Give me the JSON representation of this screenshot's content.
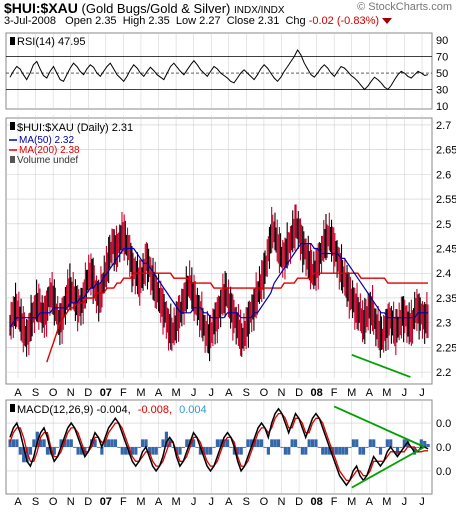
{
  "header": {
    "symbol": "$HUI:$XAU",
    "description": "(Gold Bugs/Gold & Silver)",
    "exchange": "INDX/INDX",
    "watermark": "© StockCharts.com",
    "date": "3-Jul-2008",
    "open_label": "Open",
    "open": "2.35",
    "high_label": "High",
    "high": "2.35",
    "low_label": "Low",
    "low": "2.27",
    "close_label": "Close",
    "close": "2.31",
    "chg_label": "Chg",
    "chg": "-0.02 (-0.83%)"
  },
  "colors": {
    "price_up": "#000000",
    "price_down": "#c8002a",
    "ma50": "#0000aa",
    "ma200": "#dd0000",
    "macd_line": "#000000",
    "signal_line": "#dd0000",
    "histogram": "#3366aa",
    "trendline": "#00a000",
    "grid": "#cccccc"
  },
  "chart_data": [
    {
      "type": "line",
      "panel": "RSI",
      "legend": "RSI(14) 47.95",
      "y_ticks": [
        10,
        30,
        50,
        70,
        90
      ],
      "ylim": [
        10,
        95
      ],
      "reference_lines": [
        30,
        70
      ],
      "series": [
        {
          "name": "RSI(14)",
          "values": [
            45,
            52,
            58,
            55,
            48,
            42,
            50,
            60,
            64,
            55,
            47,
            44,
            52,
            58,
            50,
            42,
            40,
            48,
            56,
            62,
            58,
            52,
            48,
            55,
            60,
            57,
            50,
            46,
            52,
            58,
            62,
            55,
            48,
            44,
            40,
            46,
            54,
            60,
            56,
            50,
            46,
            52,
            57,
            53,
            48,
            45,
            42,
            50,
            58,
            62,
            57,
            52,
            48,
            54,
            60,
            65,
            60,
            54,
            50,
            46,
            52,
            58,
            55,
            50,
            47,
            44,
            40,
            38,
            44,
            50,
            54,
            50,
            46,
            42,
            48,
            55,
            60,
            56,
            50,
            44,
            40,
            45,
            52,
            58,
            64,
            70,
            78,
            72,
            62,
            55,
            48,
            45,
            50,
            56,
            60,
            56,
            50,
            46,
            52,
            58,
            56,
            52,
            47,
            44,
            40,
            35,
            30,
            34,
            40,
            45,
            42,
            38,
            33,
            30,
            35,
            42,
            48,
            52,
            50,
            46,
            44,
            48,
            52,
            50,
            47,
            48
          ]
        }
      ]
    },
    {
      "type": "line",
      "panel": "Price",
      "title": "$HUI:$XAU (Daily) 2.31",
      "legend": [
        "$HUI:$XAU (Daily) 2.31",
        "MA(50) 2.32",
        "MA(200) 2.38",
        "Volume undef"
      ],
      "y_ticks": [
        2.2,
        2.25,
        2.3,
        2.35,
        2.4,
        2.45,
        2.5,
        2.55,
        2.6,
        2.65,
        2.7
      ],
      "ylim": [
        2.18,
        2.71
      ],
      "x_ticks": [
        "A",
        "S",
        "O",
        "N",
        "D",
        "07",
        "F",
        "M",
        "A",
        "M",
        "J",
        "J",
        "A",
        "S",
        "O",
        "N",
        "D",
        "08",
        "F",
        "M",
        "A",
        "M",
        "J",
        "J"
      ],
      "series": [
        {
          "name": "$HUI:$XAU",
          "values": [
            2.3,
            2.32,
            2.33,
            2.31,
            2.29,
            2.27,
            2.29,
            2.32,
            2.34,
            2.33,
            2.31,
            2.33,
            2.36,
            2.35,
            2.32,
            2.3,
            2.32,
            2.35,
            2.37,
            2.36,
            2.34,
            2.33,
            2.35,
            2.38,
            2.4,
            2.39,
            2.36,
            2.35,
            2.38,
            2.41,
            2.44,
            2.46,
            2.44,
            2.47,
            2.48,
            2.46,
            2.44,
            2.41,
            2.4,
            2.38,
            2.4,
            2.43,
            2.41,
            2.38,
            2.37,
            2.35,
            2.33,
            2.31,
            2.29,
            2.28,
            2.3,
            2.32,
            2.34,
            2.36,
            2.38,
            2.36,
            2.34,
            2.32,
            2.3,
            2.28,
            2.27,
            2.29,
            2.31,
            2.33,
            2.35,
            2.36,
            2.34,
            2.32,
            2.3,
            2.28,
            2.27,
            2.29,
            2.31,
            2.33,
            2.35,
            2.37,
            2.39,
            2.42,
            2.46,
            2.49,
            2.47,
            2.45,
            2.43,
            2.44,
            2.46,
            2.48,
            2.5,
            2.48,
            2.46,
            2.44,
            2.42,
            2.4,
            2.41,
            2.43,
            2.45,
            2.47,
            2.48,
            2.46,
            2.44,
            2.42,
            2.4,
            2.38,
            2.36,
            2.35,
            2.33,
            2.32,
            2.3,
            2.31,
            2.33,
            2.32,
            2.3,
            2.28,
            2.27,
            2.29,
            2.31,
            2.3,
            2.28,
            2.3,
            2.32,
            2.31,
            2.29,
            2.3,
            2.33,
            2.32,
            2.31,
            2.31
          ]
        },
        {
          "name": "MA(50)",
          "values": [
            2.29,
            2.3,
            2.31,
            2.31,
            2.31,
            2.31,
            2.31,
            2.31,
            2.31,
            2.32,
            2.32,
            2.32,
            2.32,
            2.33,
            2.33,
            2.33,
            2.33,
            2.33,
            2.34,
            2.34,
            2.34,
            2.35,
            2.35,
            2.36,
            2.37,
            2.37,
            2.38,
            2.38,
            2.39,
            2.4,
            2.41,
            2.42,
            2.43,
            2.44,
            2.45,
            2.45,
            2.45,
            2.45,
            2.44,
            2.43,
            2.42,
            2.42,
            2.41,
            2.4,
            2.39,
            2.38,
            2.37,
            2.36,
            2.35,
            2.34,
            2.33,
            2.32,
            2.32,
            2.32,
            2.32,
            2.33,
            2.33,
            2.33,
            2.32,
            2.32,
            2.31,
            2.31,
            2.31,
            2.31,
            2.31,
            2.32,
            2.32,
            2.32,
            2.32,
            2.31,
            2.31,
            2.31,
            2.31,
            2.32,
            2.32,
            2.33,
            2.34,
            2.35,
            2.36,
            2.38,
            2.39,
            2.4,
            2.41,
            2.42,
            2.43,
            2.44,
            2.45,
            2.46,
            2.46,
            2.46,
            2.46,
            2.45,
            2.45,
            2.44,
            2.44,
            2.44,
            2.44,
            2.44,
            2.44,
            2.43,
            2.43,
            2.42,
            2.41,
            2.4,
            2.39,
            2.38,
            2.37,
            2.36,
            2.35,
            2.34,
            2.33,
            2.32,
            2.32,
            2.31,
            2.31,
            2.31,
            2.31,
            2.31,
            2.31,
            2.31,
            2.31,
            2.31,
            2.32,
            2.32,
            2.32,
            2.32
          ]
        },
        {
          "name": "MA(200)",
          "values": [
            null,
            null,
            null,
            null,
            null,
            null,
            null,
            null,
            null,
            null,
            null,
            2.22,
            2.24,
            2.26,
            2.28,
            2.3,
            2.31,
            2.32,
            2.33,
            2.33,
            2.34,
            2.34,
            2.34,
            2.35,
            2.35,
            2.35,
            2.36,
            2.36,
            2.36,
            2.37,
            2.37,
            2.37,
            2.38,
            2.38,
            2.39,
            2.39,
            2.39,
            2.4,
            2.4,
            2.4,
            2.4,
            2.4,
            2.4,
            2.4,
            2.4,
            2.4,
            2.4,
            2.4,
            2.4,
            2.39,
            2.39,
            2.39,
            2.39,
            2.39,
            2.38,
            2.38,
            2.38,
            2.38,
            2.38,
            2.38,
            2.38,
            2.37,
            2.37,
            2.37,
            2.37,
            2.37,
            2.37,
            2.37,
            2.37,
            2.37,
            2.37,
            2.37,
            2.37,
            2.37,
            2.37,
            2.37,
            2.37,
            2.37,
            2.37,
            2.37,
            2.37,
            2.37,
            2.38,
            2.38,
            2.38,
            2.38,
            2.39,
            2.39,
            2.39,
            2.39,
            2.39,
            2.4,
            2.4,
            2.4,
            2.4,
            2.4,
            2.4,
            2.4,
            2.4,
            2.4,
            2.4,
            2.4,
            2.4,
            2.4,
            2.4,
            2.39,
            2.39,
            2.39,
            2.39,
            2.39,
            2.39,
            2.39,
            2.39,
            2.38,
            2.38,
            2.38,
            2.38,
            2.38,
            2.38,
            2.38,
            2.38,
            2.38,
            2.38,
            2.38,
            2.38,
            2.38
          ]
        }
      ],
      "trendline": {
        "from": [
          "M",
          2.235
        ],
        "to": [
          "J",
          2.19
        ]
      }
    },
    {
      "type": "line",
      "panel": "MACD",
      "legend": [
        "MACD(12,26,9) -0.004,",
        "-0.008,",
        "0.004"
      ],
      "y_ticks": [
        "0.0",
        "0.0",
        "0.0"
      ],
      "ylim": [
        -0.09,
        0.09
      ],
      "x_ticks": [
        "A",
        "S",
        "O",
        "N",
        "D",
        "07",
        "F",
        "M",
        "A",
        "M",
        "J",
        "J",
        "A",
        "S",
        "O",
        "N",
        "D",
        "08",
        "F",
        "M",
        "A",
        "M",
        "J",
        "J"
      ],
      "series": [
        {
          "name": "MACD",
          "values": [
            0.02,
            0.04,
            0.05,
            0.03,
            0.0,
            -0.03,
            -0.04,
            -0.02,
            0.01,
            0.03,
            0.04,
            0.02,
            -0.01,
            -0.03,
            -0.02,
            0.0,
            0.02,
            0.04,
            0.05,
            0.04,
            0.02,
            0.0,
            -0.02,
            -0.01,
            0.01,
            0.03,
            0.02,
            0.0,
            0.02,
            0.04,
            0.05,
            0.06,
            0.05,
            0.03,
            0.01,
            -0.01,
            -0.03,
            -0.04,
            -0.03,
            -0.01,
            0.0,
            -0.02,
            -0.04,
            -0.05,
            -0.04,
            -0.02,
            0.01,
            0.02,
            0.01,
            -0.02,
            -0.04,
            -0.03,
            -0.01,
            0.01,
            0.03,
            0.02,
            0.0,
            -0.02,
            -0.04,
            -0.05,
            -0.04,
            -0.02,
            0.0,
            0.02,
            0.03,
            0.02,
            0.0,
            -0.03,
            -0.05,
            -0.04,
            -0.02,
            0.0,
            0.02,
            0.04,
            0.05,
            0.04,
            0.02,
            0.05,
            0.07,
            0.08,
            0.07,
            0.05,
            0.03,
            0.05,
            0.07,
            0.06,
            0.04,
            0.02,
            0.04,
            0.06,
            0.07,
            0.06,
            0.04,
            0.02,
            0.0,
            -0.02,
            -0.04,
            -0.06,
            -0.07,
            -0.08,
            -0.07,
            -0.05,
            -0.04,
            -0.06,
            -0.07,
            -0.06,
            -0.04,
            -0.02,
            -0.03,
            -0.04,
            -0.03,
            -0.01,
            0.0,
            -0.01,
            -0.02,
            -0.01,
            0.0,
            0.01,
            0.0,
            -0.01,
            -0.01,
            0.0,
            0.0,
            -0.004
          ]
        },
        {
          "name": "Signal",
          "values": [
            0.01,
            0.03,
            0.04,
            0.04,
            0.02,
            -0.01,
            -0.03,
            -0.03,
            -0.01,
            0.02,
            0.03,
            0.03,
            0.0,
            -0.02,
            -0.02,
            -0.01,
            0.01,
            0.03,
            0.04,
            0.04,
            0.03,
            0.01,
            -0.01,
            -0.01,
            0.0,
            0.02,
            0.02,
            0.01,
            0.01,
            0.03,
            0.04,
            0.05,
            0.05,
            0.04,
            0.02,
            0.0,
            -0.02,
            -0.03,
            -0.03,
            -0.02,
            -0.01,
            -0.01,
            -0.03,
            -0.04,
            -0.04,
            -0.03,
            -0.01,
            0.01,
            0.01,
            -0.01,
            -0.03,
            -0.03,
            -0.02,
            0.0,
            0.02,
            0.02,
            0.01,
            -0.01,
            -0.03,
            -0.04,
            -0.04,
            -0.03,
            -0.01,
            0.01,
            0.02,
            0.02,
            0.01,
            -0.02,
            -0.04,
            -0.04,
            -0.03,
            -0.01,
            0.01,
            0.03,
            0.04,
            0.04,
            0.03,
            0.04,
            0.06,
            0.07,
            0.07,
            0.06,
            0.04,
            0.04,
            0.06,
            0.06,
            0.05,
            0.03,
            0.03,
            0.05,
            0.06,
            0.06,
            0.05,
            0.03,
            0.01,
            -0.01,
            -0.03,
            -0.05,
            -0.06,
            -0.07,
            -0.07,
            -0.06,
            -0.05,
            -0.05,
            -0.06,
            -0.06,
            -0.05,
            -0.03,
            -0.03,
            -0.03,
            -0.03,
            -0.02,
            -0.01,
            -0.01,
            -0.01,
            -0.01,
            -0.01,
            0.0,
            0.0,
            0.0,
            -0.01,
            -0.01,
            -0.008,
            -0.008
          ]
        }
      ],
      "trendlines": [
        {
          "from": [
            "F",
            0.085
          ],
          "to": [
            "J",
            0.0
          ]
        },
        {
          "from": [
            "M",
            -0.085
          ],
          "to": [
            "J",
            0.0
          ]
        }
      ]
    }
  ]
}
